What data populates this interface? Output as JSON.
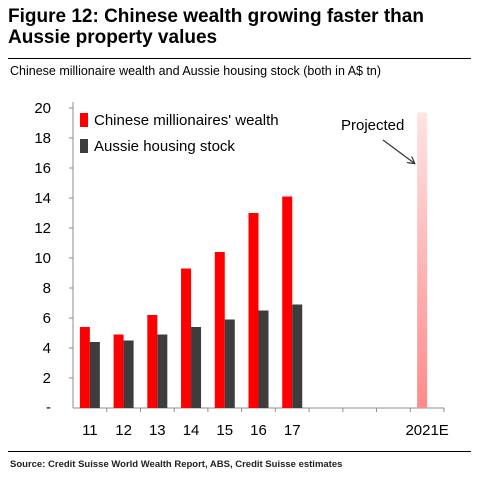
{
  "figure_title_line1": "Figure 12: Chinese wealth growing faster than",
  "figure_title_line2": "Aussie property values",
  "subtitle": "Chinese millionaire wealth and Aussie housing stock (both in A$ tn)",
  "source": "Source: Credit Suisse World Wealth Report, ABS, Credit Suisse estimates",
  "colors": {
    "chinese_wealth": "#ff0000",
    "aussie_housing": "#3d3d3d",
    "projected_bar_top": "#ffe3e3",
    "projected_bar_bottom": "#ff8a8a",
    "axis": "#8c8c8c"
  },
  "chart_data": {
    "type": "bar",
    "categories": [
      "11",
      "12",
      "13",
      "14",
      "15",
      "16",
      "17",
      "",
      "",
      "",
      "2021E"
    ],
    "series": [
      {
        "name": "Chinese millionaires' wealth",
        "values": [
          5.4,
          4.9,
          6.2,
          9.3,
          10.4,
          13.0,
          14.1,
          null,
          null,
          null,
          19.7
        ]
      },
      {
        "name": "Aussie housing stock",
        "values": [
          4.4,
          4.5,
          4.9,
          5.4,
          5.9,
          6.5,
          6.9,
          null,
          null,
          null,
          null
        ]
      }
    ],
    "ylim": [
      0,
      20
    ],
    "yticks": [
      20,
      18,
      16,
      14,
      12,
      10,
      8,
      6,
      4,
      2
    ],
    "bottom_tick_label": "-",
    "legend_position": "top-left",
    "annotation": "Projected",
    "projected_category": "2021E",
    "grid": false
  }
}
